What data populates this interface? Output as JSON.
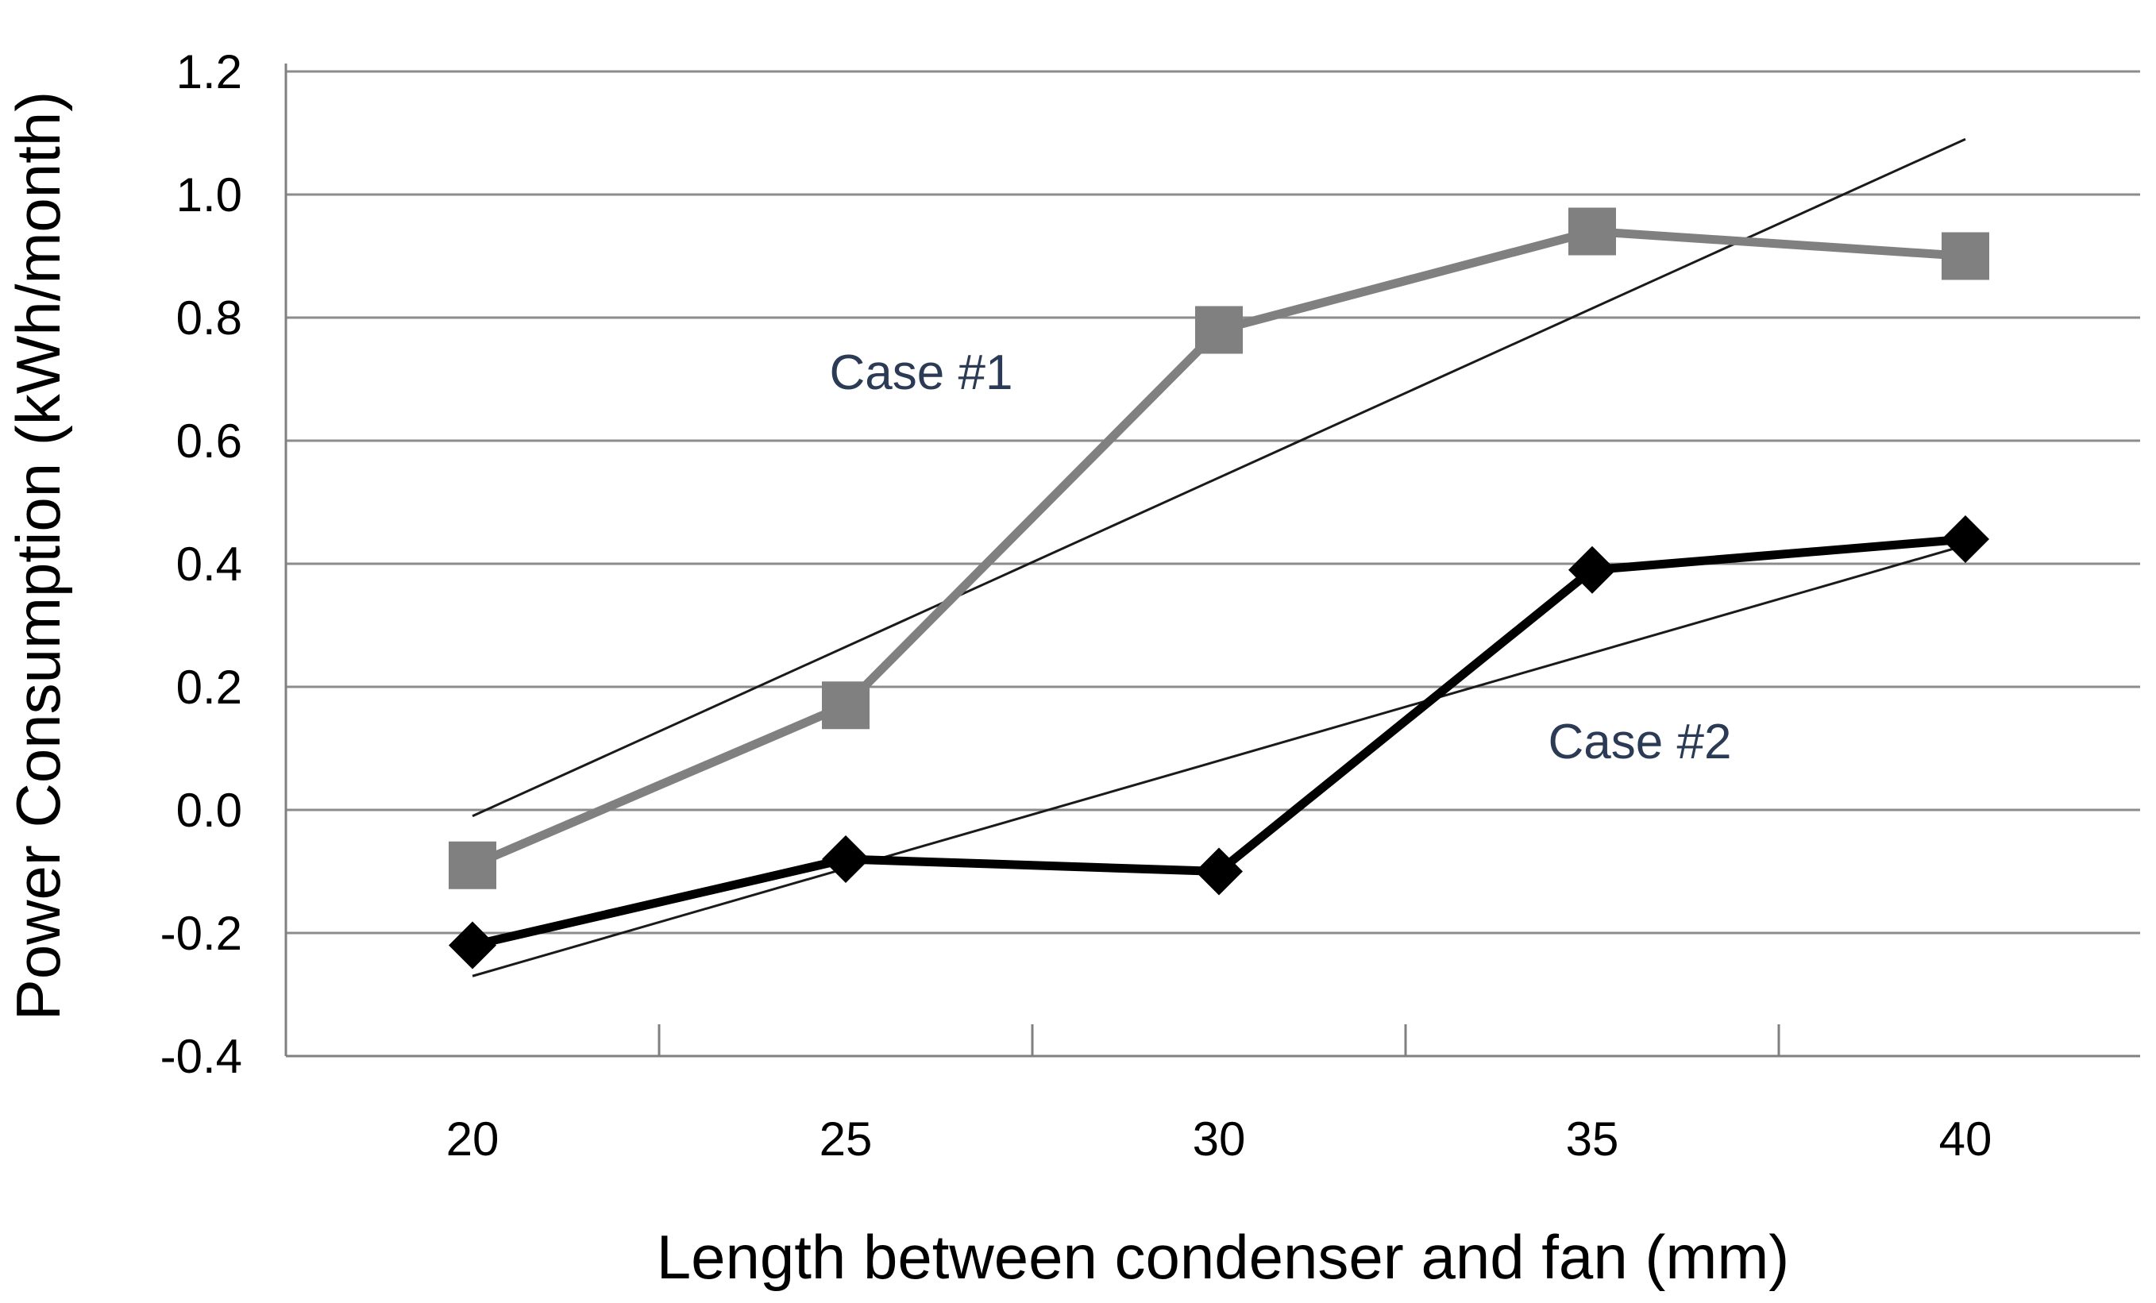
{
  "chart_data": {
    "type": "line",
    "xlabel": "Length between condenser and fan (mm)",
    "ylabel": "Power Consumption (kWh/month)",
    "categories": [
      "20",
      "25",
      "30",
      "35",
      "40"
    ],
    "yticks": [
      "-0.4",
      "-0.2",
      "0.0",
      "0.2",
      "0.4",
      "0.6",
      "0.8",
      "1.0",
      "1.2"
    ],
    "ylim": [
      -0.4,
      1.2
    ],
    "grid": "horizontal",
    "series": [
      {
        "name": "Case #1",
        "values": [
          -0.09,
          0.17,
          0.78,
          0.94,
          0.9
        ],
        "color": "#808080",
        "marker": "square",
        "trendline": [
          -0.01,
          1.09
        ]
      },
      {
        "name": "Case #2",
        "values": [
          -0.22,
          -0.08,
          -0.1,
          0.39,
          0.44
        ],
        "color": "#000000",
        "marker": "diamond",
        "trendline": [
          -0.27,
          0.43
        ]
      }
    ],
    "trendline_color": "#1a1a1a",
    "grid_color": "#8c8c8c"
  }
}
